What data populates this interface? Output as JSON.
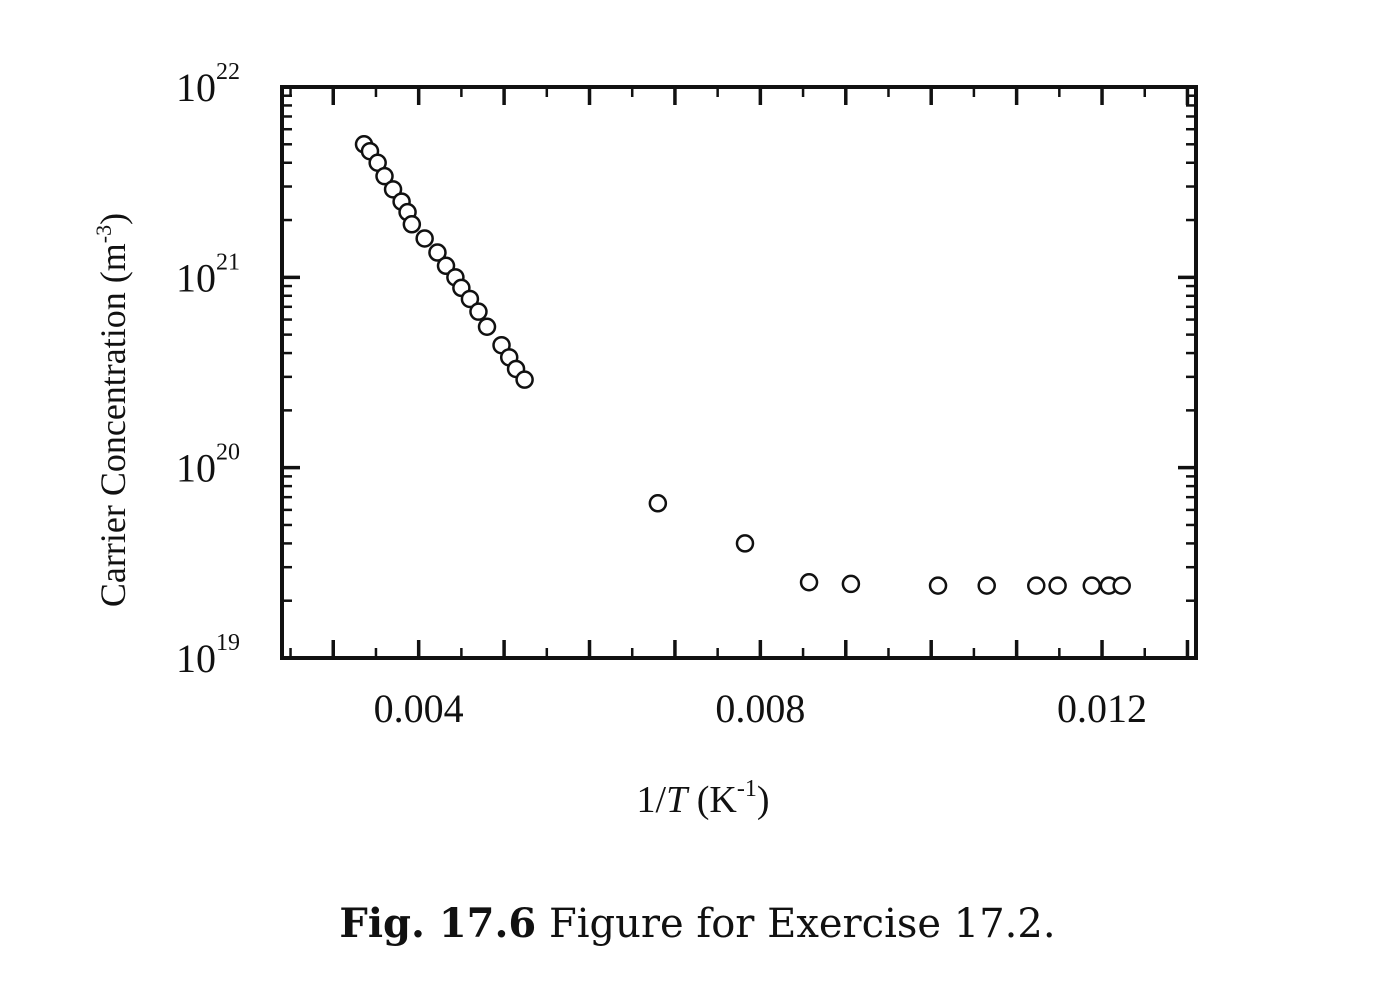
{
  "chart_data": {
    "type": "scatter",
    "title": "",
    "xlabel": "1/T (K^-1)",
    "xlabel_parts": {
      "prefix": "1/",
      "var": "T",
      "unit_open": " (K",
      "unit_exp": "-1",
      "unit_close": ")"
    },
    "ylabel": "Carrier Concentration (m^-3)",
    "ylabel_parts": {
      "text": "Carrier Concentration (m",
      "exp": "-3",
      "close": ")"
    },
    "xlim": [
      0.0024,
      0.0131
    ],
    "ylim": [
      1e+19,
      1e+22
    ],
    "yscale": "log",
    "grid": false,
    "marker": "open-circle",
    "x_ticks": [
      {
        "value": 0.004,
        "label": "0.004"
      },
      {
        "value": 0.008,
        "label": "0.008"
      },
      {
        "value": 0.012,
        "label": "0.012"
      }
    ],
    "y_ticks": [
      {
        "value": 1e+19,
        "base": "10",
        "exp": "19"
      },
      {
        "value": 1e+20,
        "base": "10",
        "exp": "20"
      },
      {
        "value": 1e+21,
        "base": "10",
        "exp": "21"
      },
      {
        "value": 1e+22,
        "base": "10",
        "exp": "22"
      }
    ],
    "series": [
      {
        "points": [
          {
            "x": 0.00336,
            "y": 5e+21
          },
          {
            "x": 0.00343,
            "y": 4.6e+21
          },
          {
            "x": 0.00352,
            "y": 4e+21
          },
          {
            "x": 0.0036,
            "y": 3.4e+21
          },
          {
            "x": 0.0037,
            "y": 2.9e+21
          },
          {
            "x": 0.0038,
            "y": 2.5e+21
          },
          {
            "x": 0.00387,
            "y": 2.2e+21
          },
          {
            "x": 0.00392,
            "y": 1.9e+21
          },
          {
            "x": 0.00407,
            "y": 1.6e+21
          },
          {
            "x": 0.00422,
            "y": 1.35e+21
          },
          {
            "x": 0.00432,
            "y": 1.15e+21
          },
          {
            "x": 0.00443,
            "y": 1e+21
          },
          {
            "x": 0.0045,
            "y": 8.8e+20
          },
          {
            "x": 0.0046,
            "y": 7.7e+20
          },
          {
            "x": 0.0047,
            "y": 6.6e+20
          },
          {
            "x": 0.0048,
            "y": 5.5e+20
          },
          {
            "x": 0.00497,
            "y": 4.4e+20
          },
          {
            "x": 0.00506,
            "y": 3.8e+20
          },
          {
            "x": 0.00514,
            "y": 3.3e+20
          },
          {
            "x": 0.00524,
            "y": 2.9e+20
          },
          {
            "x": 0.0068,
            "y": 6.5e+19
          },
          {
            "x": 0.00782,
            "y": 4e+19
          },
          {
            "x": 0.00857,
            "y": 2.5e+19
          },
          {
            "x": 0.00906,
            "y": 2.45e+19
          },
          {
            "x": 0.01008,
            "y": 2.4e+19
          },
          {
            "x": 0.01065,
            "y": 2.4e+19
          },
          {
            "x": 0.01123,
            "y": 2.4e+19
          },
          {
            "x": 0.01148,
            "y": 2.4e+19
          },
          {
            "x": 0.01188,
            "y": 2.4e+19
          },
          {
            "x": 0.01208,
            "y": 2.4e+19
          },
          {
            "x": 0.01223,
            "y": 2.4e+19
          }
        ]
      }
    ]
  },
  "caption": {
    "label": "Fig. 17.6",
    "text": " Figure for Exercise 17.2."
  }
}
